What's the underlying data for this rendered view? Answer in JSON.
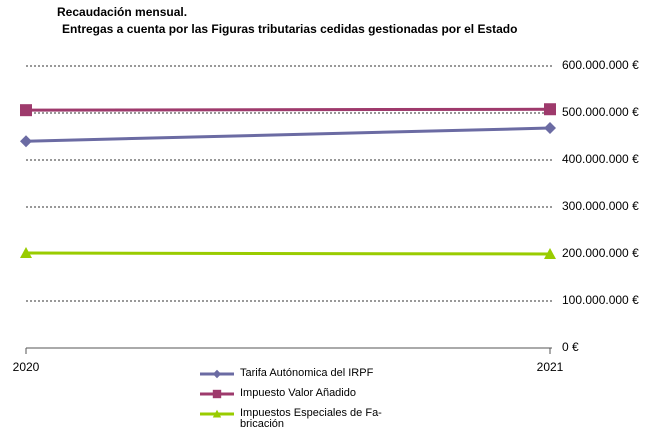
{
  "chart_data": {
    "type": "line",
    "title": "Recaudación mensual.",
    "subtitle": "Entregas a cuenta por las Figuras tributarias cedidas gestionadas por el Estado",
    "categories": [
      "2020",
      "2021"
    ],
    "series": [
      {
        "name": "Tarifa Autónomica del IRPF",
        "color": "#6b6ba3",
        "marker": "diamond",
        "values": [
          440000000,
          468000000
        ]
      },
      {
        "name": "Impuesto Valor Añadido",
        "color": "#9e3a6c",
        "marker": "square",
        "values": [
          506000000,
          508000000
        ]
      },
      {
        "name": "Impuestos Especiales de Fa-\nbricación",
        "color": "#99cc00",
        "marker": "triangle",
        "values": [
          202000000,
          200000000
        ]
      }
    ],
    "ylim": [
      0,
      600000000
    ],
    "yticks": [
      {
        "value": 0,
        "label": "0 €"
      },
      {
        "value": 100000000,
        "label": "100.000.000 €"
      },
      {
        "value": 200000000,
        "label": "200.000.000 €"
      },
      {
        "value": 300000000,
        "label": "300.000.000 €"
      },
      {
        "value": 400000000,
        "label": "400.000.000 €"
      },
      {
        "value": 500000000,
        "label": "500.000.000 €"
      },
      {
        "value": 600000000,
        "label": "600.000.000 €"
      }
    ],
    "grid": true
  }
}
